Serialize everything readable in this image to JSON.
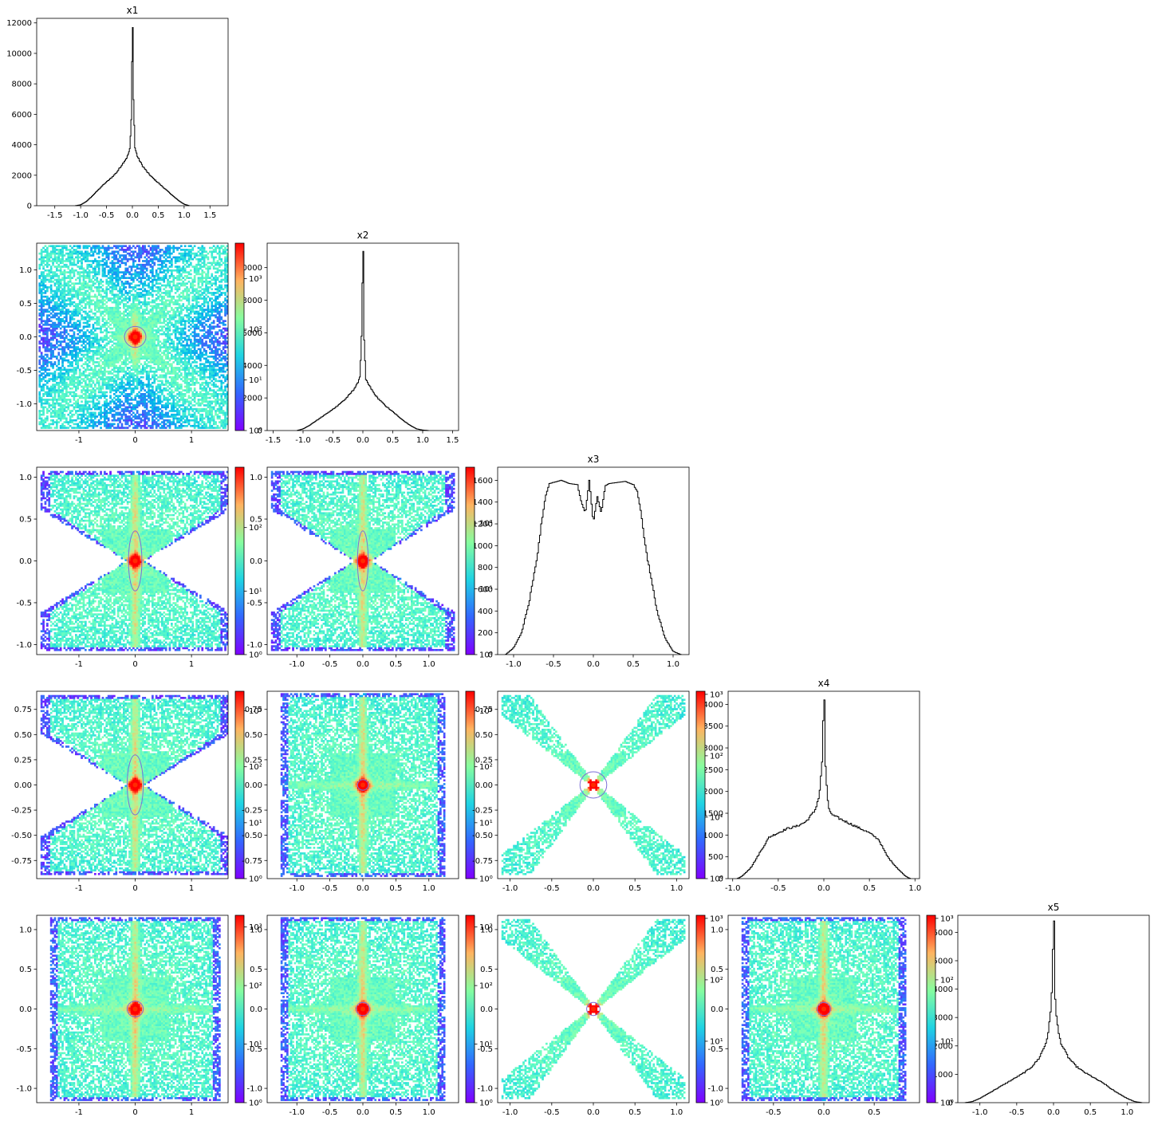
{
  "figure": {
    "variables": [
      "x1",
      "x2",
      "x3",
      "x4",
      "x5"
    ],
    "colorbar_cmap": "rainbow",
    "contour_color": "#7b6fd6",
    "histogram_line_color": "#000000"
  },
  "chart_data": [
    {
      "type": "histogram",
      "name": "hist-x1",
      "title": "x1",
      "row": 0,
      "col": 0,
      "xlim": [
        -1.85,
        1.85
      ],
      "ylim": [
        0,
        12300
      ],
      "xticks": [
        "-1.5",
        "-1.0",
        "-0.5",
        "0.0",
        "0.5",
        "1.0",
        "1.5"
      ],
      "xtick_values": [
        -1.5,
        -1.0,
        -0.5,
        0.0,
        0.5,
        1.0,
        1.5
      ],
      "yticks": [
        "0",
        "2000",
        "4000",
        "6000",
        "8000",
        "10000",
        "12000"
      ],
      "ytick_values": [
        0,
        2000,
        4000,
        6000,
        8000,
        10000,
        12000
      ],
      "x": [
        -1.1,
        -1.0,
        -0.9,
        -0.8,
        -0.7,
        -0.6,
        -0.5,
        -0.4,
        -0.3,
        -0.2,
        -0.1,
        -0.05,
        -0.02,
        0.0,
        0.02,
        0.05,
        0.1,
        0.2,
        0.3,
        0.4,
        0.5,
        0.6,
        0.7,
        0.8,
        0.9,
        1.0,
        1.1
      ],
      "values": [
        0,
        60,
        250,
        550,
        900,
        1250,
        1550,
        1850,
        2200,
        2700,
        3200,
        3700,
        5600,
        11700,
        7100,
        3800,
        3200,
        2600,
        2150,
        1800,
        1500,
        1200,
        900,
        600,
        320,
        100,
        0
      ]
    },
    {
      "type": "histogram",
      "name": "hist-x2",
      "title": "x2",
      "row": 1,
      "col": 1,
      "xlim": [
        -1.6,
        1.6
      ],
      "ylim": [
        0,
        11500
      ],
      "xticks": [
        "-1.5",
        "-1.0",
        "-0.5",
        "0.0",
        "0.5",
        "1.0",
        "1.5"
      ],
      "xtick_values": [
        -1.5,
        -1.0,
        -0.5,
        0.0,
        0.5,
        1.0,
        1.5
      ],
      "yticks": [
        "0",
        "2000",
        "4000",
        "6000",
        "8000",
        "10000"
      ],
      "ytick_values": [
        0,
        2000,
        4000,
        6000,
        8000,
        10000
      ],
      "x": [
        -1.1,
        -1.0,
        -0.9,
        -0.8,
        -0.7,
        -0.6,
        -0.5,
        -0.4,
        -0.3,
        -0.2,
        -0.1,
        -0.05,
        -0.02,
        0.0,
        0.02,
        0.05,
        0.1,
        0.2,
        0.3,
        0.4,
        0.5,
        0.6,
        0.7,
        0.8,
        0.9,
        1.0,
        1.1
      ],
      "values": [
        0,
        100,
        300,
        550,
        800,
        1050,
        1300,
        1600,
        1900,
        2300,
        2800,
        3300,
        5700,
        11000,
        5600,
        3100,
        2800,
        2200,
        1800,
        1450,
        1150,
        850,
        550,
        300,
        100,
        30,
        0
      ]
    },
    {
      "type": "histogram",
      "name": "hist-x3",
      "title": "x3",
      "row": 2,
      "col": 2,
      "xlim": [
        -1.2,
        1.2
      ],
      "ylim": [
        0,
        1720
      ],
      "xticks": [
        "-1.0",
        "-0.5",
        "0.0",
        "0.5",
        "1.0"
      ],
      "xtick_values": [
        -1.0,
        -0.5,
        0.0,
        0.5,
        1.0
      ],
      "yticks": [
        "0",
        "200",
        "400",
        "600",
        "800",
        "1000",
        "1200",
        "1400",
        "1600"
      ],
      "ytick_values": [
        0,
        200,
        400,
        600,
        800,
        1000,
        1200,
        1400,
        1600
      ],
      "x": [
        -1.1,
        -1.0,
        -0.9,
        -0.8,
        -0.7,
        -0.65,
        -0.6,
        -0.55,
        -0.5,
        -0.4,
        -0.3,
        -0.2,
        -0.15,
        -0.1,
        -0.05,
        0.0,
        0.05,
        0.1,
        0.15,
        0.2,
        0.3,
        0.4,
        0.5,
        0.55,
        0.6,
        0.65,
        0.7,
        0.8,
        0.9,
        1.0,
        1.1
      ],
      "values": [
        0,
        60,
        200,
        500,
        900,
        1200,
        1450,
        1570,
        1580,
        1600,
        1570,
        1560,
        1400,
        1300,
        1600,
        1210,
        1450,
        1300,
        1550,
        1570,
        1580,
        1590,
        1560,
        1500,
        1300,
        1000,
        800,
        400,
        150,
        30,
        0
      ]
    },
    {
      "type": "histogram",
      "name": "hist-x4",
      "title": "x4",
      "row": 3,
      "col": 3,
      "xlim": [
        -1.05,
        1.05
      ],
      "ylim": [
        0,
        4300
      ],
      "xticks": [
        "-1.0",
        "-0.5",
        "0.0",
        "0.5",
        "1.0"
      ],
      "xtick_values": [
        -1.0,
        -0.5,
        0.0,
        0.5,
        1.0
      ],
      "yticks": [
        "0",
        "500",
        "1000",
        "1500",
        "2000",
        "2500",
        "3000",
        "3500",
        "4000"
      ],
      "ytick_values": [
        0,
        500,
        1000,
        1500,
        2000,
        2500,
        3000,
        3500,
        4000
      ],
      "x": [
        -0.95,
        -0.9,
        -0.8,
        -0.7,
        -0.6,
        -0.5,
        -0.4,
        -0.3,
        -0.2,
        -0.1,
        -0.05,
        -0.02,
        0.0,
        0.02,
        0.05,
        0.1,
        0.2,
        0.3,
        0.4,
        0.5,
        0.6,
        0.7,
        0.8,
        0.9,
        0.95
      ],
      "values": [
        0,
        50,
        250,
        600,
        950,
        1050,
        1150,
        1200,
        1300,
        1550,
        1900,
        2600,
        4100,
        2500,
        1600,
        1450,
        1350,
        1250,
        1150,
        1050,
        900,
        500,
        250,
        50,
        0
      ]
    },
    {
      "type": "histogram",
      "name": "hist-x5",
      "title": "x5",
      "row": 4,
      "col": 4,
      "xlim": [
        -1.3,
        1.3
      ],
      "ylim": [
        0,
        6600
      ],
      "xticks": [
        "-1.0",
        "-0.5",
        "0.0",
        "0.5",
        "1.0"
      ],
      "xtick_values": [
        -1.0,
        -0.5,
        0.0,
        0.5,
        1.0
      ],
      "yticks": [
        "0",
        "1000",
        "2000",
        "3000",
        "4000",
        "5000",
        "6000"
      ],
      "ytick_values": [
        0,
        1000,
        2000,
        3000,
        4000,
        5000,
        6000
      ],
      "x": [
        -1.2,
        -1.1,
        -1.0,
        -0.9,
        -0.8,
        -0.7,
        -0.6,
        -0.5,
        -0.4,
        -0.3,
        -0.2,
        -0.1,
        -0.05,
        -0.02,
        0.0,
        0.02,
        0.05,
        0.1,
        0.2,
        0.3,
        0.4,
        0.5,
        0.6,
        0.7,
        0.8,
        0.9,
        1.0,
        1.1,
        1.2
      ],
      "values": [
        0,
        40,
        150,
        300,
        450,
        600,
        750,
        900,
        1050,
        1250,
        1550,
        2100,
        2800,
        3900,
        6400,
        3700,
        2700,
        2100,
        1600,
        1300,
        1100,
        950,
        800,
        650,
        450,
        300,
        150,
        40,
        0
      ]
    },
    {
      "type": "heatmap",
      "name": "hist2d-x1-x2",
      "x_var": "x1",
      "y_var": "x2",
      "row": 1,
      "col": 0,
      "shape": "butterfly",
      "log_color": true,
      "xlim": [
        -1.75,
        1.65
      ],
      "ylim": [
        -1.4,
        1.4
      ],
      "xticks": [
        "-1",
        "0",
        "1"
      ],
      "xtick_values": [
        -1,
        0,
        1
      ],
      "yticks": [
        "-1.0",
        "-0.5",
        "0.0",
        "0.5",
        "1.0"
      ],
      "ytick_values": [
        -1.0,
        -0.5,
        0.0,
        0.5,
        1.0
      ],
      "vmax_exp": 3.7,
      "colorbar_ticks": [
        "10⁰",
        "10¹",
        "10²",
        "10³"
      ],
      "colorbar_tick_values": [
        0,
        1,
        2,
        3
      ],
      "contour_width": 0.16
    },
    {
      "type": "heatmap",
      "name": "hist2d-x1-x3",
      "x_var": "x1",
      "y_var": "x3",
      "row": 2,
      "col": 0,
      "shape": "hourglass",
      "log_color": true,
      "xlim": [
        -1.75,
        1.65
      ],
      "ylim": [
        -1.12,
        1.12
      ],
      "xticks": [
        "-1",
        "0",
        "1"
      ],
      "xtick_values": [
        -1,
        0,
        1
      ],
      "yticks": [
        "-1.0",
        "-0.5",
        "0.0",
        "0.5",
        "1.0"
      ],
      "ytick_values": [
        -1.0,
        -0.5,
        0.0,
        0.5,
        1.0
      ],
      "vmax_exp": 2.95,
      "colorbar_ticks": [
        "10⁰",
        "10¹",
        "10²"
      ],
      "colorbar_tick_values": [
        0,
        1,
        2
      ],
      "contour_width": 0.1
    },
    {
      "type": "heatmap",
      "name": "hist2d-x2-x3",
      "x_var": "x2",
      "y_var": "x3",
      "row": 2,
      "col": 1,
      "shape": "hourglass",
      "log_color": true,
      "xlim": [
        -1.45,
        1.45
      ],
      "ylim": [
        -1.12,
        1.12
      ],
      "xticks": [
        "-1.0",
        "-0.5",
        "0.0",
        "0.5",
        "1.0"
      ],
      "xtick_values": [
        -1.0,
        -0.5,
        0.0,
        0.5,
        1.0
      ],
      "yticks": [
        "-1.0",
        "-0.5",
        "0.0",
        "0.5",
        "1.0"
      ],
      "ytick_values": [
        -1.0,
        -0.5,
        0.0,
        0.5,
        1.0
      ],
      "vmax_exp": 2.85,
      "colorbar_ticks": [
        "10⁰",
        "10¹",
        "10²"
      ],
      "colorbar_tick_values": [
        0,
        1,
        2
      ],
      "contour_width": 0.08
    },
    {
      "type": "heatmap",
      "name": "hist2d-x1-x4",
      "x_var": "x1",
      "y_var": "x4",
      "row": 3,
      "col": 0,
      "shape": "hourglass",
      "log_color": true,
      "xlim": [
        -1.75,
        1.65
      ],
      "ylim": [
        -0.93,
        0.93
      ],
      "xticks": [
        "-1",
        "0",
        "1"
      ],
      "xtick_values": [
        -1,
        0,
        1
      ],
      "yticks": [
        "-0.75",
        "-0.50",
        "-0.25",
        "0.00",
        "0.25",
        "0.50",
        "0.75"
      ],
      "ytick_values": [
        -0.75,
        -0.5,
        -0.25,
        0.0,
        0.25,
        0.5,
        0.75
      ],
      "vmax_exp": 3.35,
      "colorbar_ticks": [
        "10⁰",
        "10¹",
        "10²",
        "10³"
      ],
      "colorbar_tick_values": [
        0,
        1,
        2,
        3
      ],
      "contour_width": 0.12
    },
    {
      "type": "heatmap",
      "name": "hist2d-x2-x4",
      "x_var": "x2",
      "y_var": "x4",
      "row": 3,
      "col": 1,
      "shape": "box",
      "log_color": true,
      "xlim": [
        -1.45,
        1.45
      ],
      "ylim": [
        -0.93,
        0.93
      ],
      "xticks": [
        "-1.0",
        "-0.5",
        "0.0",
        "0.5",
        "1.0"
      ],
      "xtick_values": [
        -1.0,
        -0.5,
        0.0,
        0.5,
        1.0
      ],
      "yticks": [
        "-0.75",
        "-0.50",
        "-0.25",
        "0.00",
        "0.25",
        "0.50",
        "0.75"
      ],
      "ytick_values": [
        -0.75,
        -0.5,
        -0.25,
        0.0,
        0.25,
        0.5,
        0.75
      ],
      "vmax_exp": 3.35,
      "colorbar_ticks": [
        "10⁰",
        "10¹",
        "10²",
        "10³"
      ],
      "colorbar_tick_values": [
        0,
        1,
        2,
        3
      ],
      "contour_width": 0.08
    },
    {
      "type": "heatmap",
      "name": "hist2d-x3-x4",
      "x_var": "x3",
      "y_var": "x4",
      "row": 3,
      "col": 2,
      "shape": "x",
      "log_color": true,
      "xlim": [
        -1.15,
        1.15
      ],
      "ylim": [
        -0.93,
        0.93
      ],
      "xticks": [
        "-1.0",
        "-0.5",
        "0.0",
        "0.5",
        "1.0"
      ],
      "xtick_values": [
        -1.0,
        -0.5,
        0.0,
        0.5,
        1.0
      ],
      "yticks": [
        "-0.75",
        "-0.50",
        "-0.25",
        "0.00",
        "0.25",
        "0.50",
        "0.75"
      ],
      "ytick_values": [
        -0.75,
        -0.5,
        -0.25,
        0.0,
        0.25,
        0.5,
        0.75
      ],
      "vmax_exp": 3.05,
      "colorbar_ticks": [
        "10⁰",
        "10¹",
        "10²",
        "10³"
      ],
      "colorbar_tick_values": [
        0,
        1,
        2,
        3
      ],
      "contour_width": 0.2
    },
    {
      "type": "heatmap",
      "name": "hist2d-x1-x5",
      "x_var": "x1",
      "y_var": "x5",
      "row": 4,
      "col": 0,
      "shape": "box",
      "log_color": true,
      "xlim": [
        -1.75,
        1.65
      ],
      "ylim": [
        -1.18,
        1.18
      ],
      "xticks": [
        "-1",
        "0",
        "1"
      ],
      "xtick_values": [
        -1,
        0,
        1
      ],
      "yticks": [
        "-1.0",
        "-0.5",
        "0.0",
        "0.5",
        "1.0"
      ],
      "ytick_values": [
        -1.0,
        -0.5,
        0.0,
        0.5,
        1.0
      ],
      "vmax_exp": 3.2,
      "colorbar_ticks": [
        "10⁰",
        "10¹",
        "10²",
        "10³"
      ],
      "colorbar_tick_values": [
        0,
        1,
        2,
        3
      ],
      "contour_width": 0.12
    },
    {
      "type": "heatmap",
      "name": "hist2d-x2-x5",
      "x_var": "x2",
      "y_var": "x5",
      "row": 4,
      "col": 1,
      "shape": "box",
      "log_color": true,
      "xlim": [
        -1.45,
        1.45
      ],
      "ylim": [
        -1.18,
        1.18
      ],
      "xticks": [
        "-1.0",
        "-0.5",
        "0.0",
        "0.5",
        "1.0"
      ],
      "xtick_values": [
        -1.0,
        -0.5,
        0.0,
        0.5,
        1.0
      ],
      "yticks": [
        "-1.0",
        "-0.5",
        "0.0",
        "0.5",
        "1.0"
      ],
      "ytick_values": [
        -1.0,
        -0.5,
        0.0,
        0.5,
        1.0
      ],
      "vmax_exp": 3.2,
      "colorbar_ticks": [
        "10⁰",
        "10¹",
        "10²",
        "10³"
      ],
      "colorbar_tick_values": [
        0,
        1,
        2,
        3
      ],
      "contour_width": 0.1
    },
    {
      "type": "heatmap",
      "name": "hist2d-x3-x5",
      "x_var": "x3",
      "y_var": "x5",
      "row": 4,
      "col": 2,
      "shape": "x",
      "log_color": true,
      "xlim": [
        -1.15,
        1.15
      ],
      "ylim": [
        -1.18,
        1.18
      ],
      "xticks": [
        "-1.0",
        "-0.5",
        "0.0",
        "0.5",
        "1.0"
      ],
      "xtick_values": [
        -1.0,
        -0.5,
        0.0,
        0.5,
        1.0
      ],
      "yticks": [
        "-1.0",
        "-0.5",
        "0.0",
        "0.5",
        "1.0"
      ],
      "ytick_values": [
        -1.0,
        -0.5,
        0.0,
        0.5,
        1.0
      ],
      "vmax_exp": 3.05,
      "colorbar_ticks": [
        "10⁰",
        "10¹",
        "10²",
        "10³"
      ],
      "colorbar_tick_values": [
        0,
        1,
        2,
        3
      ],
      "contour_width": 0.1
    },
    {
      "type": "heatmap",
      "name": "hist2d-x4-x5",
      "x_var": "x4",
      "y_var": "x5",
      "row": 4,
      "col": 3,
      "shape": "box",
      "log_color": true,
      "xlim": [
        -0.95,
        0.95
      ],
      "ylim": [
        -1.18,
        1.18
      ],
      "xticks": [
        "-0.5",
        "0.0",
        "0.5"
      ],
      "xtick_values": [
        -0.5,
        0.0,
        0.5
      ],
      "yticks": [
        "-1.0",
        "-0.5",
        "0.0",
        "0.5",
        "1.0"
      ],
      "ytick_values": [
        -1.0,
        -0.5,
        0.0,
        0.5,
        1.0
      ],
      "vmax_exp": 3.05,
      "colorbar_ticks": [
        "10⁰",
        "10¹",
        "10²",
        "10³"
      ],
      "colorbar_tick_values": [
        0,
        1,
        2,
        3
      ],
      "contour_width": 0.1
    }
  ]
}
